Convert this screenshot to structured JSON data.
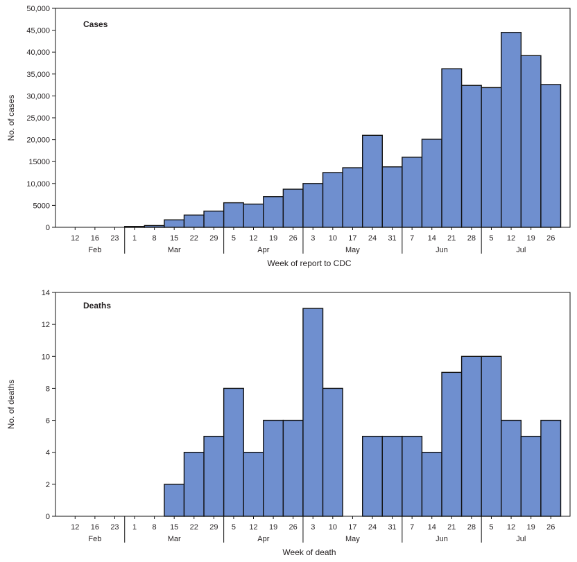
{
  "colors": {
    "bar_fill": "#6f8fcf",
    "bar_stroke": "#111111",
    "axis": "#111111"
  },
  "weeks": [
    "12",
    "16",
    "23",
    "1",
    "8",
    "15",
    "22",
    "29",
    "5",
    "12",
    "19",
    "26",
    "3",
    "10",
    "17",
    "24",
    "31",
    "7",
    "14",
    "21",
    "28",
    "5",
    "12",
    "19",
    "26"
  ],
  "months": [
    {
      "label": "Feb",
      "start": 0,
      "end": 3
    },
    {
      "label": "Mar",
      "start": 3,
      "end": 8
    },
    {
      "label": "Apr",
      "start": 8,
      "end": 12
    },
    {
      "label": "May",
      "start": 12,
      "end": 17
    },
    {
      "label": "Jun",
      "start": 17,
      "end": 21
    },
    {
      "label": "Jul",
      "start": 21,
      "end": 25
    }
  ],
  "chart_data": [
    {
      "type": "bar",
      "title": "Cases",
      "xlabel": "Week of report to CDC",
      "ylabel": "No. of cases",
      "ylim": [
        0,
        50000
      ],
      "yticks": [
        0,
        5000,
        10000,
        15000,
        20000,
        25000,
        30000,
        35000,
        40000,
        45000,
        50000
      ],
      "ytick_labels": [
        "0",
        "5000",
        "10,000",
        "15000",
        "20,000",
        "25,000",
        "30,000",
        "35,000",
        "40,000",
        "45,000",
        "50,000"
      ],
      "values": [
        0,
        0,
        0,
        200,
        400,
        1700,
        2800,
        3700,
        5600,
        5300,
        7000,
        8700,
        10000,
        12500,
        13600,
        21000,
        13800,
        16000,
        20100,
        36200,
        32400,
        31900,
        44500,
        39200,
        32600
      ]
    },
    {
      "type": "bar",
      "title": "Deaths",
      "xlabel": "Week of death",
      "ylabel": "No. of deaths",
      "ylim": [
        0,
        14
      ],
      "yticks": [
        0,
        2,
        4,
        6,
        8,
        10,
        12,
        14
      ],
      "ytick_labels": [
        "0",
        "2",
        "4",
        "6",
        "8",
        "10",
        "12",
        "14"
      ],
      "values": [
        0,
        0,
        0,
        0,
        0,
        2,
        4,
        5,
        8,
        4,
        6,
        6,
        13,
        8,
        0,
        5,
        5,
        5,
        4,
        9,
        10,
        10,
        6,
        5,
        6
      ]
    }
  ]
}
